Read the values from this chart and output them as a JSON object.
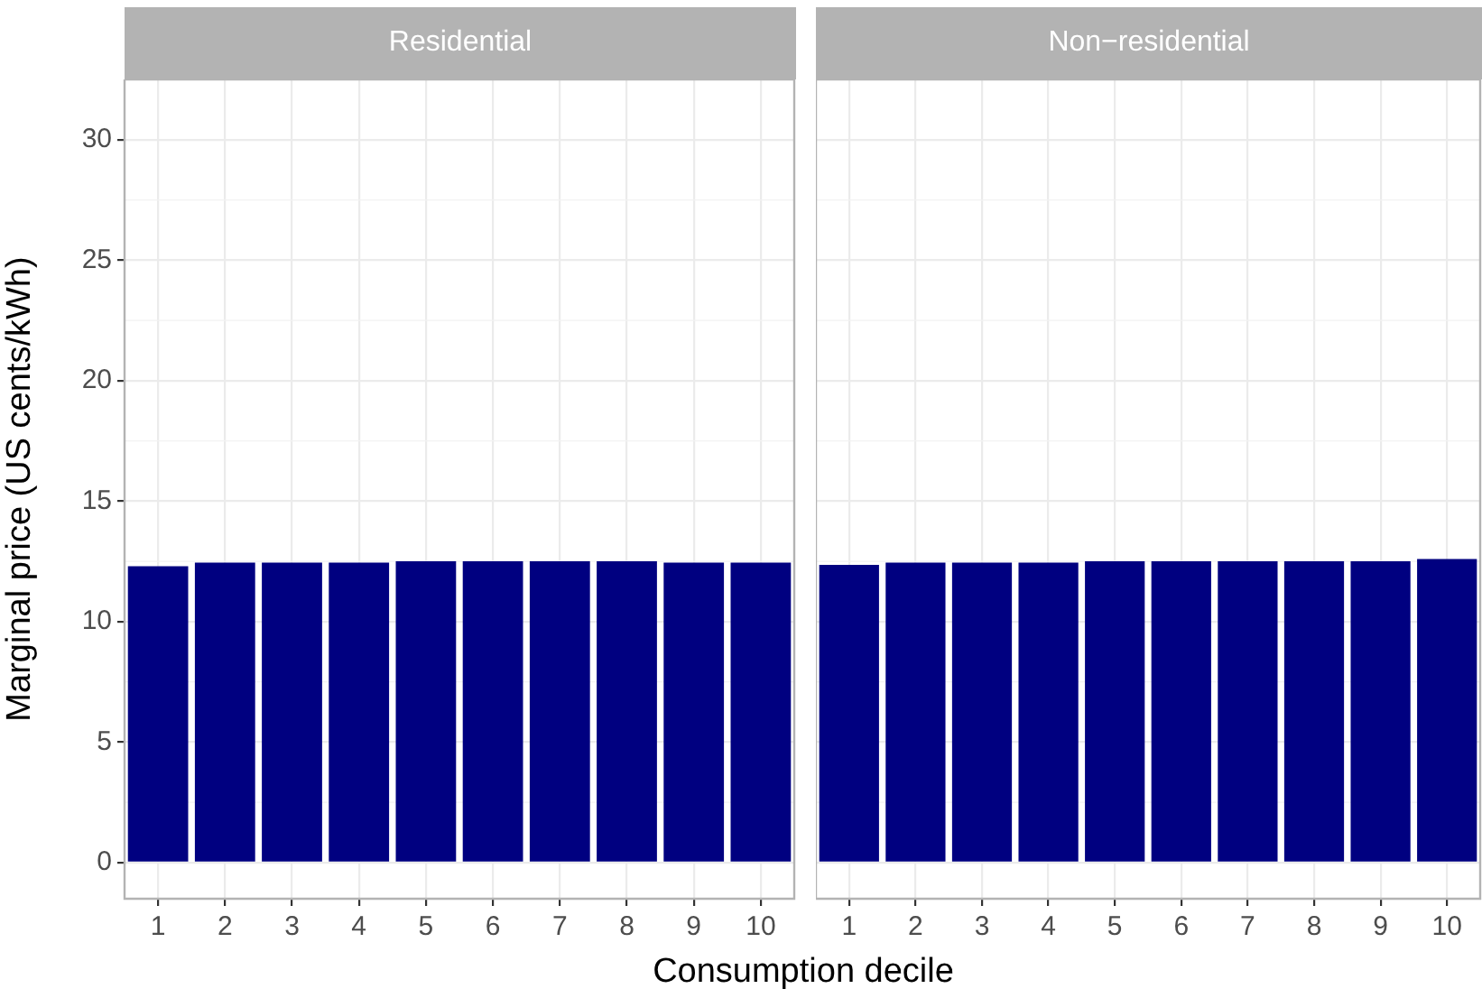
{
  "chart_data": [
    {
      "type": "bar",
      "title": "Residential",
      "xlabel": "Consumption decile",
      "ylabel": "Marginal price (US cents/kWh)",
      "categories": [
        "1",
        "2",
        "3",
        "4",
        "5",
        "6",
        "7",
        "8",
        "9",
        "10"
      ],
      "values": [
        12.3,
        12.45,
        12.45,
        12.45,
        12.5,
        12.5,
        12.5,
        12.5,
        12.45,
        12.45
      ],
      "color": "#000080",
      "ylim": [
        -1.5,
        32.5
      ],
      "yticks": [
        0,
        5,
        10,
        15,
        20,
        25,
        30
      ],
      "grid": true
    },
    {
      "type": "bar",
      "title": "Non−residential",
      "categories": [
        "1",
        "2",
        "3",
        "4",
        "5",
        "6",
        "7",
        "8",
        "9",
        "10"
      ],
      "values": [
        12.35,
        12.45,
        12.45,
        12.45,
        12.5,
        12.5,
        12.5,
        12.5,
        12.5,
        12.6
      ],
      "color": "#000080",
      "ylim": [
        -1.5,
        32.5
      ],
      "yticks": [
        0,
        5,
        10,
        15,
        20,
        25,
        30
      ],
      "grid": true,
      "tick_labels": "x"
    }
  ]
}
